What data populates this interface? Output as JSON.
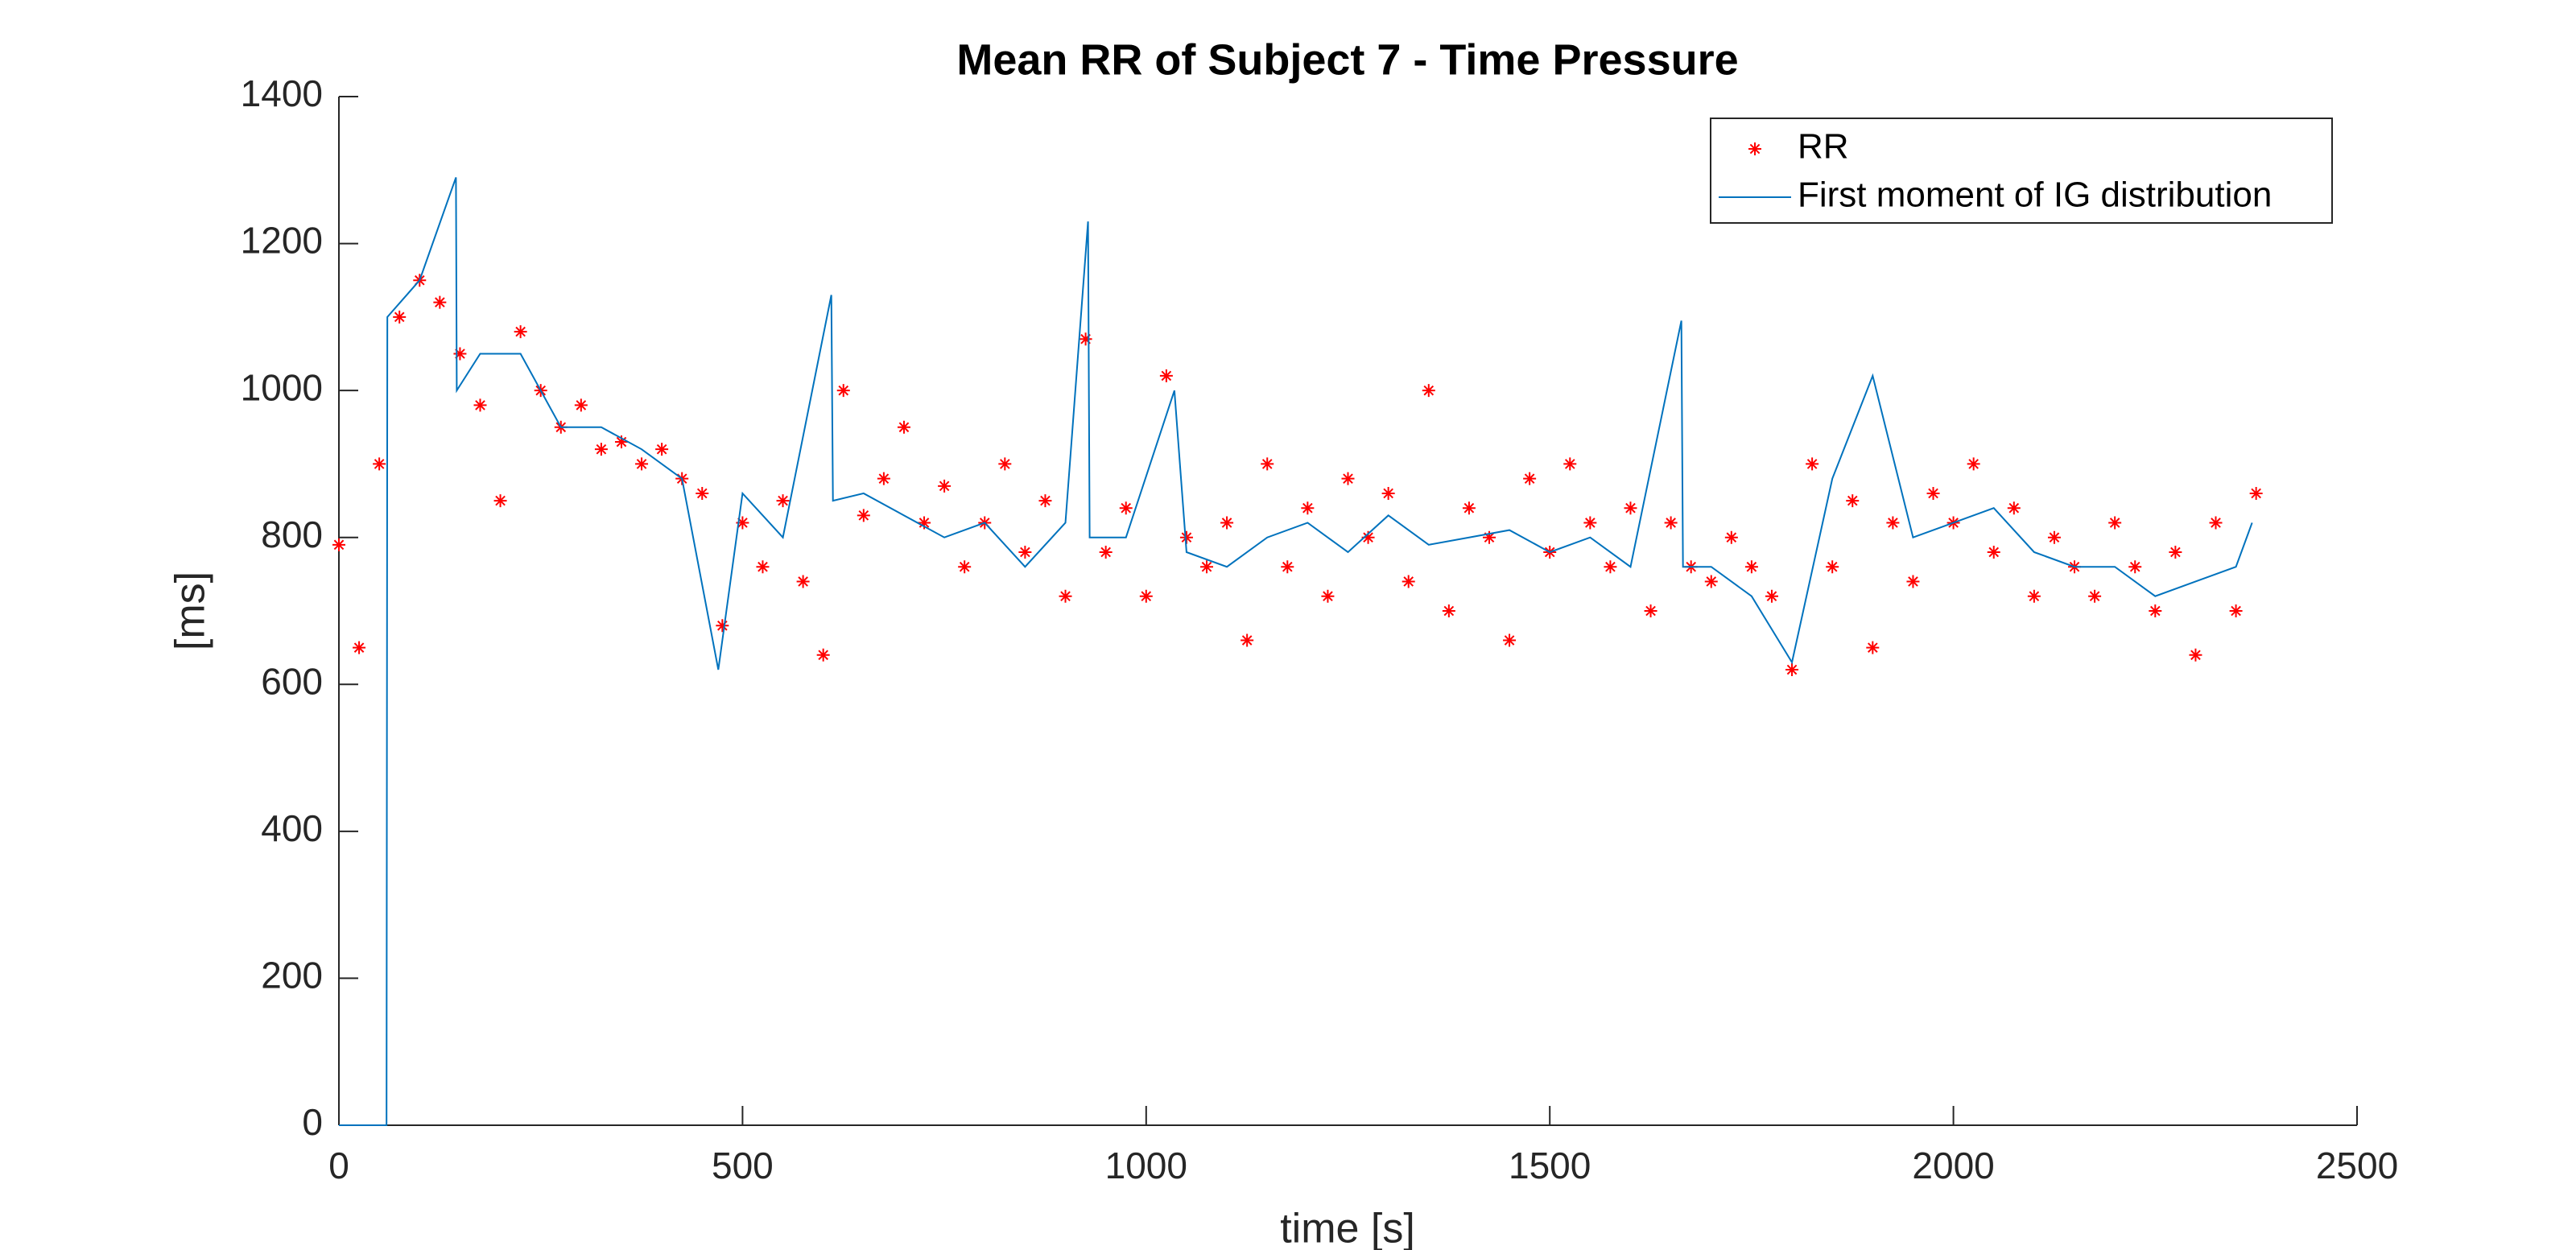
{
  "chart_data": {
    "type": "line",
    "title": "Mean RR of Subject 7 - Time Pressure",
    "xlabel": "time [s]",
    "ylabel": "[ms]",
    "xlim": [
      0,
      2500
    ],
    "xticks": [
      0,
      500,
      1000,
      1500,
      2000,
      2500
    ],
    "ylim": [
      0,
      1400
    ],
    "yticks": [
      0,
      200,
      400,
      600,
      800,
      1000,
      1200,
      1400
    ],
    "grid": false,
    "legend": "northeast",
    "series": [
      {
        "name": "RR",
        "color": "#ff0000",
        "marker": "*",
        "line": false,
        "x": [
          0,
          25,
          50,
          75,
          100,
          125,
          150,
          175,
          200,
          225,
          250,
          275,
          300,
          325,
          350,
          375,
          400,
          425,
          450,
          475,
          500,
          525,
          550,
          575,
          600,
          625,
          650,
          675,
          700,
          725,
          750,
          775,
          800,
          825,
          850,
          875,
          900,
          925,
          950,
          975,
          1000,
          1025,
          1050,
          1075,
          1100,
          1125,
          1150,
          1175,
          1200,
          1225,
          1250,
          1275,
          1300,
          1325,
          1350,
          1375,
          1400,
          1425,
          1450,
          1475,
          1500,
          1525,
          1550,
          1575,
          1600,
          1625,
          1650,
          1675,
          1700,
          1725,
          1750,
          1775,
          1800,
          1825,
          1850,
          1875,
          1900,
          1925,
          1950,
          1975,
          2000,
          2025,
          2050,
          2075,
          2100,
          2125,
          2150,
          2175,
          2200,
          2225,
          2250,
          2275,
          2300,
          2325,
          2350,
          2375
        ],
        "values": [
          790,
          650,
          900,
          1100,
          1150,
          1120,
          1050,
          980,
          850,
          1080,
          1000,
          950,
          980,
          920,
          930,
          900,
          920,
          880,
          860,
          680,
          820,
          760,
          850,
          740,
          640,
          1000,
          830,
          880,
          950,
          820,
          870,
          760,
          820,
          900,
          780,
          850,
          720,
          1070,
          780,
          840,
          720,
          1020,
          800,
          760,
          820,
          660,
          900,
          760,
          840,
          720,
          880,
          800,
          860,
          740,
          1000,
          700,
          840,
          800,
          660,
          880,
          780,
          900,
          820,
          760,
          840,
          700,
          820,
          760,
          740,
          800,
          760,
          720,
          620,
          900,
          760,
          850,
          650,
          820,
          740,
          860,
          820,
          900,
          780,
          840,
          720,
          800,
          760,
          720,
          820,
          760,
          700,
          780,
          640,
          820,
          700,
          860
        ]
      },
      {
        "name": "First moment of IG distribution",
        "color": "#0072bd",
        "marker": null,
        "line": true,
        "x": [
          0,
          59,
          60,
          100,
          145,
          146,
          175,
          225,
          275,
          325,
          375,
          425,
          470,
          500,
          550,
          610,
          612,
          650,
          700,
          750,
          800,
          850,
          900,
          928,
          930,
          975,
          1035,
          1050,
          1100,
          1150,
          1200,
          1250,
          1300,
          1350,
          1400,
          1450,
          1500,
          1550,
          1600,
          1663,
          1665,
          1700,
          1750,
          1800,
          1850,
          1900,
          1950,
          2000,
          2050,
          2100,
          2150,
          2200,
          2250,
          2300,
          2350,
          2370
        ],
        "values": [
          0,
          0,
          1100,
          1150,
          1290,
          1000,
          1050,
          1050,
          950,
          950,
          920,
          880,
          620,
          860,
          800,
          1130,
          850,
          860,
          830,
          800,
          820,
          760,
          820,
          1230,
          800,
          800,
          1000,
          780,
          760,
          800,
          820,
          780,
          830,
          790,
          800,
          810,
          780,
          800,
          760,
          1095,
          760,
          760,
          720,
          630,
          880,
          1020,
          800,
          820,
          840,
          780,
          760,
          760,
          720,
          740,
          760,
          820
        ]
      }
    ]
  }
}
